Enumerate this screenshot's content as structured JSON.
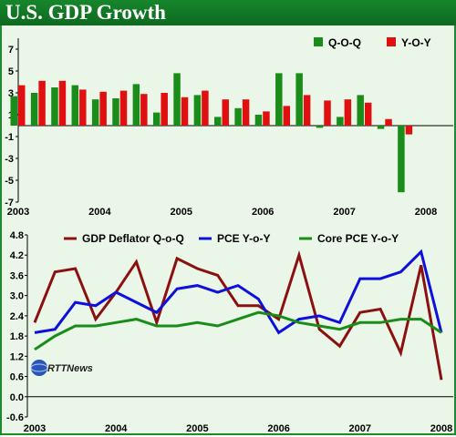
{
  "title": "U.S. GDP Growth",
  "logo_text": "RTTNews",
  "chart_data": [
    {
      "type": "bar",
      "xlim": [
        2003,
        2008
      ],
      "ylim": [
        -7,
        8
      ],
      "yticks": [
        "7",
        "5",
        "3",
        "1",
        "-1",
        "-3",
        "-5",
        "-7"
      ],
      "ytick_values": [
        7,
        5,
        3,
        1,
        -1,
        -3,
        -5,
        -7
      ],
      "xticks": [
        "2003",
        "2004",
        "2005",
        "2006",
        "2007",
        "2008"
      ],
      "xtick_values": [
        2003,
        2004,
        2005,
        2006,
        2007,
        2008
      ],
      "legend_position": "top-right",
      "grid": false,
      "categories": [
        "2003Q1",
        "2003Q2",
        "2003Q3",
        "2003Q4",
        "2004Q1",
        "2004Q2",
        "2004Q3",
        "2004Q4",
        "2005Q1",
        "2005Q2",
        "2005Q3",
        "2005Q4",
        "2006Q1",
        "2006Q2",
        "2006Q3",
        "2006Q4",
        "2007Q1",
        "2007Q2",
        "2007Q3",
        "2007Q4",
        "2008Q1"
      ],
      "series": [
        {
          "name": "Q-O-Q",
          "color": "#1a8c1a",
          "values": [
            2.7,
            3.0,
            3.5,
            3.7,
            2.4,
            2.5,
            3.8,
            1.2,
            4.8,
            2.8,
            0.8,
            1.6,
            1.0,
            4.8,
            4.8,
            -0.2,
            0.8,
            2.8,
            -0.3,
            -6.1,
            null
          ]
        },
        {
          "name": "Y-O-Y",
          "color": "#e01010",
          "values": [
            3.7,
            4.1,
            4.1,
            3.3,
            3.1,
            3.2,
            2.9,
            3.0,
            2.6,
            3.2,
            2.4,
            2.4,
            1.3,
            1.8,
            2.8,
            2.3,
            2.4,
            2.1,
            0.6,
            -0.8,
            null
          ]
        }
      ]
    },
    {
      "type": "line",
      "xlim": [
        2003,
        2008
      ],
      "ylim": [
        -0.6,
        4.8
      ],
      "yticks": [
        "4.8",
        "4.2",
        "3.6",
        "3.0",
        "2.4",
        "1.8",
        "1.2",
        "0.6",
        "0.0",
        "-0.6"
      ],
      "ytick_values": [
        4.8,
        4.2,
        3.6,
        3.0,
        2.4,
        1.8,
        1.2,
        0.6,
        0.0,
        -0.6
      ],
      "xticks": [
        "2003",
        "2004",
        "2005",
        "2006",
        "2007",
        "2008"
      ],
      "xtick_values": [
        2003,
        2004,
        2005,
        2006,
        2007,
        2008
      ],
      "legend_position": "top",
      "grid": false,
      "x": [
        2003.0,
        2003.25,
        2003.5,
        2003.75,
        2004.0,
        2004.25,
        2004.5,
        2004.75,
        2005.0,
        2005.25,
        2005.5,
        2005.75,
        2006.0,
        2006.25,
        2006.5,
        2006.75,
        2007.0,
        2007.25,
        2007.5,
        2007.75,
        2008.0
      ],
      "series": [
        {
          "name": "GDP Deflator Q-o-Q",
          "color": "#8b1010",
          "values": [
            2.2,
            3.7,
            3.8,
            2.3,
            3.1,
            4.0,
            2.2,
            4.1,
            3.8,
            3.6,
            2.7,
            2.7,
            2.3,
            4.2,
            2.0,
            1.5,
            2.5,
            2.6,
            1.3,
            3.9,
            0.5
          ]
        },
        {
          "name": "PCE Y-o-Y",
          "color": "#1010dd",
          "values": [
            1.9,
            2.0,
            2.8,
            2.7,
            3.1,
            2.8,
            2.5,
            3.2,
            3.3,
            3.1,
            3.3,
            2.9,
            1.9,
            2.3,
            2.4,
            2.2,
            3.5,
            3.5,
            3.7,
            4.3,
            1.9
          ]
        },
        {
          "name": "Core PCE  Y-o-Y",
          "color": "#1a8c1a",
          "values": [
            1.4,
            1.8,
            2.1,
            2.1,
            2.2,
            2.3,
            2.1,
            2.1,
            2.2,
            2.1,
            2.3,
            2.5,
            2.4,
            2.2,
            2.1,
            2.0,
            2.2,
            2.2,
            2.3,
            2.3,
            1.9
          ]
        }
      ]
    }
  ]
}
